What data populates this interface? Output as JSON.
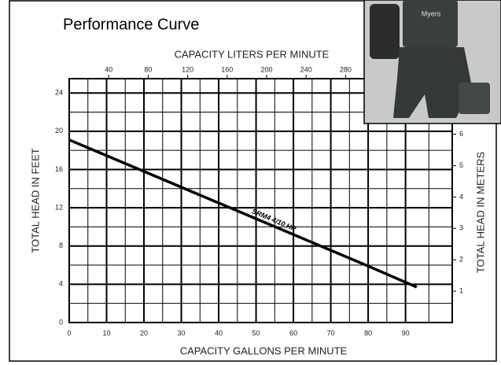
{
  "chart_data": {
    "type": "line",
    "title": "Performance Curve",
    "x_label": "CAPACITY GALLONS PER MINUTE",
    "x2_label": "CAPACITY LITERS PER MINUTE",
    "y_label": "TOTAL HEAD IN FEET",
    "y2_label": "TOTAL HEAD IN METERS",
    "annotation": "SRM4  4/10 HP",
    "photo_label": "Myers",
    "x": [
      0,
      20,
      40,
      60,
      80,
      93
    ],
    "series": [
      {
        "name": "SRM4 4/10 HP",
        "color": "#000000",
        "values": [
          19.1,
          15.8,
          12.5,
          9.2,
          5.9,
          3.7
        ]
      }
    ],
    "xlim": [
      0,
      102.5
    ],
    "xticks": [
      0,
      10,
      20,
      30,
      40,
      50,
      60,
      70,
      80,
      90
    ],
    "x2lim": [
      0,
      388
    ],
    "x2ticks": [
      40,
      80,
      120,
      160,
      200,
      240,
      280
    ],
    "ylim": [
      0,
      25.5
    ],
    "yticks": [
      0,
      4,
      8,
      12,
      16,
      20,
      24
    ],
    "y2lim": [
      0,
      7.77
    ],
    "y2ticks": [
      1,
      2,
      3,
      4,
      5,
      6
    ],
    "grid": true
  }
}
